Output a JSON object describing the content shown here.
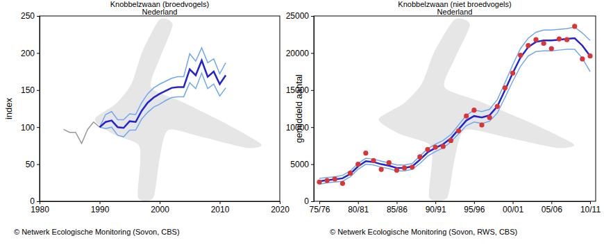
{
  "chart_data": [
    {
      "type": "line",
      "title": "Knobbelzwaan (broedvogels)",
      "subtitle": "Nederland",
      "y_label": "index",
      "annotations": [
        "© Netwerk Ecologische Monitoring (Sovon, CBS)"
      ],
      "x": [
        1984,
        1985,
        1986,
        1987,
        1988,
        1989,
        1990,
        1991,
        1992,
        1993,
        1994,
        1995,
        1996,
        1997,
        1998,
        1999,
        2000,
        2001,
        2002,
        2003,
        2004,
        2005,
        2006,
        2007,
        2008,
        2009,
        2010,
        2011
      ],
      "xlim": [
        1980,
        2020
      ],
      "xticks": [
        1980,
        1990,
        2000,
        2010,
        2020
      ],
      "ylim": [
        0,
        250
      ],
      "yticks": [
        0,
        50,
        100,
        150,
        200,
        250
      ],
      "grid": false,
      "series": [
        {
          "color": "#999999",
          "values": [
            97,
            93,
            93,
            78,
            97,
            107,
            100,
            null,
            null,
            null,
            null,
            null,
            null,
            null,
            null,
            null,
            null,
            null,
            null,
            null,
            null,
            null,
            null,
            null,
            null,
            null,
            null,
            null
          ]
        },
        {
          "color": "#6ea8f0",
          "values": [
            null,
            null,
            null,
            null,
            null,
            null,
            100,
            117,
            121,
            110,
            110,
            118,
            117,
            133,
            145,
            153,
            158,
            162,
            166,
            168,
            168,
            199,
            189,
            207,
            187,
            192,
            172,
            187
          ]
        },
        {
          "color": "#6ea8f0",
          "values": [
            null,
            null,
            null,
            null,
            null,
            null,
            100,
            98,
            100,
            89,
            87,
            96,
            96,
            111,
            120,
            127,
            131,
            136,
            140,
            141,
            141,
            160,
            152,
            173,
            152,
            158,
            142,
            153
          ]
        },
        {
          "color": "#2222d6",
          "values": [
            null,
            null,
            null,
            null,
            null,
            null,
            100,
            107,
            109,
            100,
            99,
            108,
            107,
            122,
            133,
            140,
            145,
            149,
            153,
            154,
            154,
            178,
            170,
            190,
            168,
            175,
            158,
            170
          ]
        }
      ]
    },
    {
      "type": "line",
      "title": "Knobbelzwaan (niet broedvogels)",
      "subtitle": "Nederland",
      "y_label": "gemiddeld aantal",
      "annotations": [
        "© Netwerk Ecologische Monitoring (Sovon, RWS, CBS)"
      ],
      "categories": [
        "75/76",
        null,
        null,
        null,
        null,
        "80/81",
        null,
        null,
        null,
        null,
        "85/86",
        null,
        null,
        null,
        null,
        "90/91",
        null,
        null,
        null,
        null,
        "95/96",
        null,
        null,
        null,
        null,
        "00/01",
        null,
        null,
        null,
        null,
        "05/06",
        null,
        null,
        null,
        null,
        "10/11"
      ],
      "ylim": [
        0,
        25000
      ],
      "yticks": [
        0,
        5000,
        10000,
        15000,
        20000,
        25000
      ],
      "grid": false,
      "series": [
        {
          "color": "#6ea8f0",
          "values": [
            3100,
            3200,
            3300,
            3500,
            4100,
            5100,
            5800,
            5700,
            5400,
            5200,
            4900,
            4900,
            5100,
            6100,
            7100,
            7700,
            8200,
            9000,
            10300,
            11600,
            12300,
            12100,
            12400,
            13700,
            16000,
            18400,
            20600,
            22000,
            22800,
            23100,
            23100,
            23200,
            23300,
            23500,
            22700,
            21700
          ]
        },
        {
          "color": "#6ea8f0",
          "values": [
            2300,
            2500,
            2600,
            2700,
            3300,
            4300,
            5000,
            4900,
            4600,
            4400,
            4100,
            4100,
            4300,
            5100,
            6100,
            6700,
            7200,
            8000,
            9100,
            10200,
            10700,
            10500,
            10800,
            11900,
            14000,
            16200,
            18200,
            19600,
            20200,
            20300,
            20300,
            20400,
            20500,
            20500,
            19300,
            17500
          ]
        },
        {
          "color": "#2222d6",
          "values": [
            2700,
            2850,
            2950,
            3100,
            3700,
            4700,
            5400,
            5300,
            5000,
            4800,
            4500,
            4500,
            4700,
            5600,
            6600,
            7200,
            7700,
            8500,
            9700,
            10900,
            11500,
            11300,
            11600,
            12800,
            15000,
            17300,
            19400,
            20800,
            21500,
            21700,
            21700,
            21800,
            21900,
            22000,
            21000,
            19600
          ]
        },
        {
          "type": "scatter",
          "marker": "circle",
          "color": "#dd3333",
          "values": [
            2600,
            2800,
            3000,
            2400,
            3800,
            5000,
            6500,
            5500,
            4300,
            5200,
            4200,
            4500,
            4600,
            6000,
            7000,
            7300,
            7400,
            8200,
            9500,
            11500,
            12300,
            10300,
            11300,
            12800,
            15300,
            17300,
            19700,
            21000,
            21800,
            21300,
            20600,
            21900,
            21800,
            23600,
            19200,
            19600
          ]
        }
      ]
    }
  ]
}
